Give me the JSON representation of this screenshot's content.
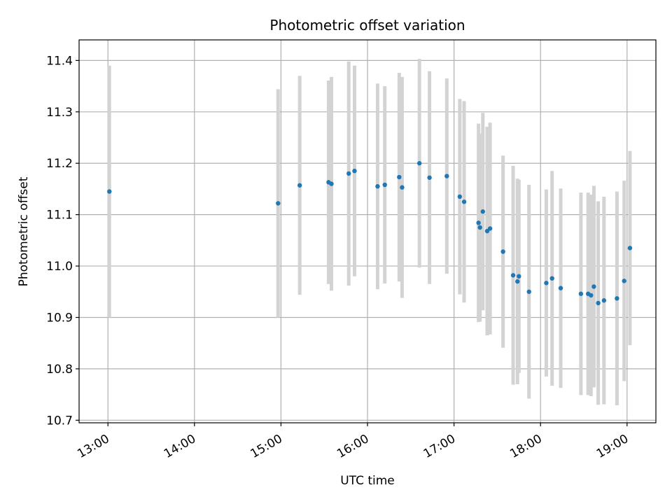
{
  "chart_data": {
    "type": "scatter",
    "title": "Photometric offset variation",
    "xlabel": "UTC time",
    "ylabel": "Photometric offset",
    "x_tick_labels": [
      "13:00",
      "14:00",
      "15:00",
      "16:00",
      "17:00",
      "18:00",
      "19:00"
    ],
    "y_tick_labels": [
      "10.7",
      "10.8",
      "10.9",
      "11.0",
      "11.1",
      "11.2",
      "11.3",
      "11.4"
    ],
    "xlim": [
      "12:40",
      "19:20"
    ],
    "ylim": [
      10.695,
      11.44
    ],
    "grid": true,
    "marker_color": "#1f77b4",
    "errorbar_color": "#d3d3d3",
    "points": [
      {
        "t": "13:01",
        "y": 11.145,
        "err": 0.245
      },
      {
        "t": "14:58",
        "y": 11.122,
        "err": 0.222
      },
      {
        "t": "15:13",
        "y": 11.157,
        "err": 0.213
      },
      {
        "t": "15:33",
        "y": 11.163,
        "err": 0.198
      },
      {
        "t": "15:35",
        "y": 11.16,
        "err": 0.208
      },
      {
        "t": "15:47",
        "y": 11.18,
        "err": 0.218
      },
      {
        "t": "15:51",
        "y": 11.185,
        "err": 0.205
      },
      {
        "t": "16:07",
        "y": 11.155,
        "err": 0.2
      },
      {
        "t": "16:12",
        "y": 11.158,
        "err": 0.192
      },
      {
        "t": "16:22",
        "y": 11.173,
        "err": 0.203
      },
      {
        "t": "16:24",
        "y": 11.153,
        "err": 0.215
      },
      {
        "t": "16:36",
        "y": 11.2,
        "err": 0.203
      },
      {
        "t": "16:43",
        "y": 11.172,
        "err": 0.207
      },
      {
        "t": "16:55",
        "y": 11.175,
        "err": 0.19
      },
      {
        "t": "17:04",
        "y": 11.135,
        "err": 0.19
      },
      {
        "t": "17:07",
        "y": 11.125,
        "err": 0.196
      },
      {
        "t": "17:17",
        "y": 11.084,
        "err": 0.193
      },
      {
        "t": "17:18",
        "y": 11.075,
        "err": 0.183
      },
      {
        "t": "17:20",
        "y": 11.106,
        "err": 0.192
      },
      {
        "t": "17:23",
        "y": 11.068,
        "err": 0.203
      },
      {
        "t": "17:25",
        "y": 11.073,
        "err": 0.206
      },
      {
        "t": "17:34",
        "y": 11.028,
        "err": 0.187
      },
      {
        "t": "17:41",
        "y": 10.982,
        "err": 0.213
      },
      {
        "t": "17:44",
        "y": 10.97,
        "err": 0.2
      },
      {
        "t": "17:45",
        "y": 10.98,
        "err": 0.188
      },
      {
        "t": "17:52",
        "y": 10.95,
        "err": 0.208
      },
      {
        "t": "18:04",
        "y": 10.967,
        "err": 0.182
      },
      {
        "t": "18:08",
        "y": 10.976,
        "err": 0.209
      },
      {
        "t": "18:14",
        "y": 10.957,
        "err": 0.194
      },
      {
        "t": "18:28",
        "y": 10.946,
        "err": 0.197
      },
      {
        "t": "18:33",
        "y": 10.946,
        "err": 0.197
      },
      {
        "t": "18:35",
        "y": 10.943,
        "err": 0.196
      },
      {
        "t": "18:37",
        "y": 10.96,
        "err": 0.196
      },
      {
        "t": "18:40",
        "y": 10.928,
        "err": 0.198
      },
      {
        "t": "18:44",
        "y": 10.933,
        "err": 0.202
      },
      {
        "t": "18:53",
        "y": 10.937,
        "err": 0.208
      },
      {
        "t": "18:58",
        "y": 10.971,
        "err": 0.195
      },
      {
        "t": "19:02",
        "y": 11.035,
        "err": 0.189
      }
    ]
  }
}
